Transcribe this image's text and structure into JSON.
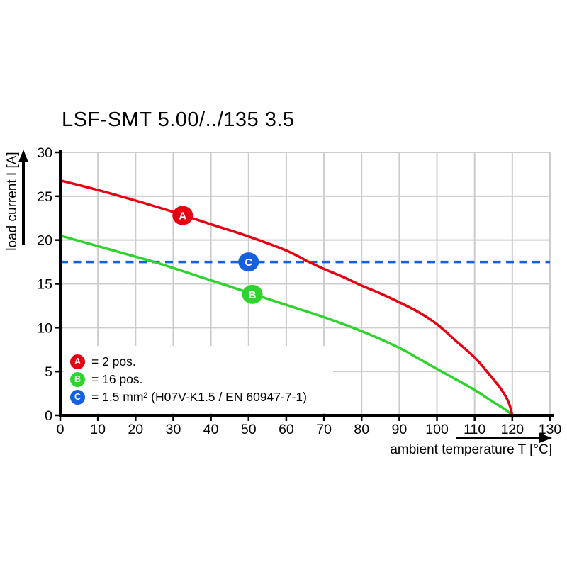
{
  "chart_data": {
    "type": "line",
    "title": "LSF-SMT 5.00/../135 3.5",
    "xlabel": "ambient temperature T [°C]",
    "ylabel": "load current I [A]",
    "xlim": [
      0,
      130
    ],
    "ylim": [
      0,
      30
    ],
    "x_ticks": [
      0,
      10,
      20,
      30,
      40,
      50,
      60,
      70,
      80,
      90,
      100,
      110,
      120,
      130
    ],
    "y_ticks": [
      0,
      5,
      10,
      15,
      20,
      25,
      30
    ],
    "grid": true,
    "grid_color": "#cccccc",
    "axis_color": "#000000",
    "legend_position": "bottom-left",
    "series": [
      {
        "id": "A",
        "legend_label": "= 2 pos.",
        "color": "#e60012",
        "line_style": "solid",
        "marker": {
          "letter": "A",
          "x": 32.5,
          "y": 22.8
        },
        "points": [
          [
            0,
            26.8
          ],
          [
            10,
            25.7
          ],
          [
            20,
            24.5
          ],
          [
            30,
            23.2
          ],
          [
            40,
            21.8
          ],
          [
            50,
            20.4
          ],
          [
            60,
            18.8
          ],
          [
            66,
            17.5
          ],
          [
            70,
            16.7
          ],
          [
            75,
            15.8
          ],
          [
            80,
            14.8
          ],
          [
            85,
            13.9
          ],
          [
            90,
            12.9
          ],
          [
            95,
            11.8
          ],
          [
            100,
            10.4
          ],
          [
            105,
            8.5
          ],
          [
            110,
            6.6
          ],
          [
            114,
            4.6
          ],
          [
            117,
            3.0
          ],
          [
            119,
            1.5
          ],
          [
            120,
            0
          ]
        ]
      },
      {
        "id": "B",
        "legend_label": "= 16 pos.",
        "color": "#2ed32e",
        "line_style": "solid",
        "marker": {
          "letter": "B",
          "x": 51,
          "y": 13.8
        },
        "points": [
          [
            0,
            20.5
          ],
          [
            10,
            19.3
          ],
          [
            20,
            18.1
          ],
          [
            25,
            17.5
          ],
          [
            30,
            16.8
          ],
          [
            40,
            15.4
          ],
          [
            50,
            14.0
          ],
          [
            60,
            12.6
          ],
          [
            70,
            11.2
          ],
          [
            80,
            9.6
          ],
          [
            90,
            7.7
          ],
          [
            95,
            6.5
          ],
          [
            100,
            5.3
          ],
          [
            105,
            4.1
          ],
          [
            110,
            2.9
          ],
          [
            115,
            1.5
          ],
          [
            118,
            0.7
          ],
          [
            120,
            0
          ]
        ]
      },
      {
        "id": "C",
        "legend_label": "= 1.5 mm² (H07V-K1.5 / EN 60947-7-1)",
        "color": "#1560e0",
        "line_style": "dashed",
        "marker": {
          "letter": "C",
          "x": 50,
          "y": 17.5
        },
        "points": [
          [
            0,
            17.5
          ],
          [
            130,
            17.5
          ]
        ]
      }
    ]
  }
}
